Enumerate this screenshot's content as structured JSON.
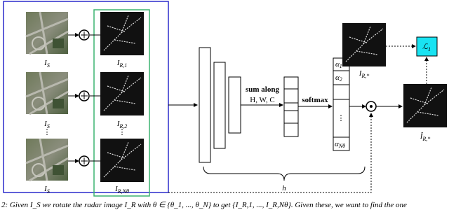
{
  "left_panel": {
    "satellite_labels": [
      {
        "base": "I",
        "sub": "S"
      },
      {
        "base": "I",
        "sub": "S"
      },
      {
        "base": "I",
        "sub": "S"
      }
    ],
    "radar_labels": [
      {
        "base": "I",
        "sub": "R,1"
      },
      {
        "base": "I",
        "sub": "R,2"
      },
      {
        "base": "I",
        "sub": "R,Nθ"
      }
    ],
    "vertical_dots": "⋮"
  },
  "network": {
    "sum_label": [
      "sum along",
      "H, W, C"
    ],
    "softmax": "softmax",
    "alphas": [
      {
        "base": "α",
        "sub": "1"
      },
      {
        "base": "α",
        "sub": "2"
      },
      {
        "base": "α",
        "sub": "Nθ"
      }
    ],
    "brace_label": "h"
  },
  "output": {
    "target": {
      "base": "I",
      "sub": "R,*"
    },
    "loss": {
      "base": "ℒ",
      "sub": "1"
    },
    "prediction": {
      "base": "Î",
      "sub": "R,*"
    }
  },
  "caption": "2:  Given I_S we rotate the radar image I_R with θ ∈ {θ_1, ..., θ_N} to get {I_R,1, ..., I_R,Nθ}. Given these, we want to find the one"
}
